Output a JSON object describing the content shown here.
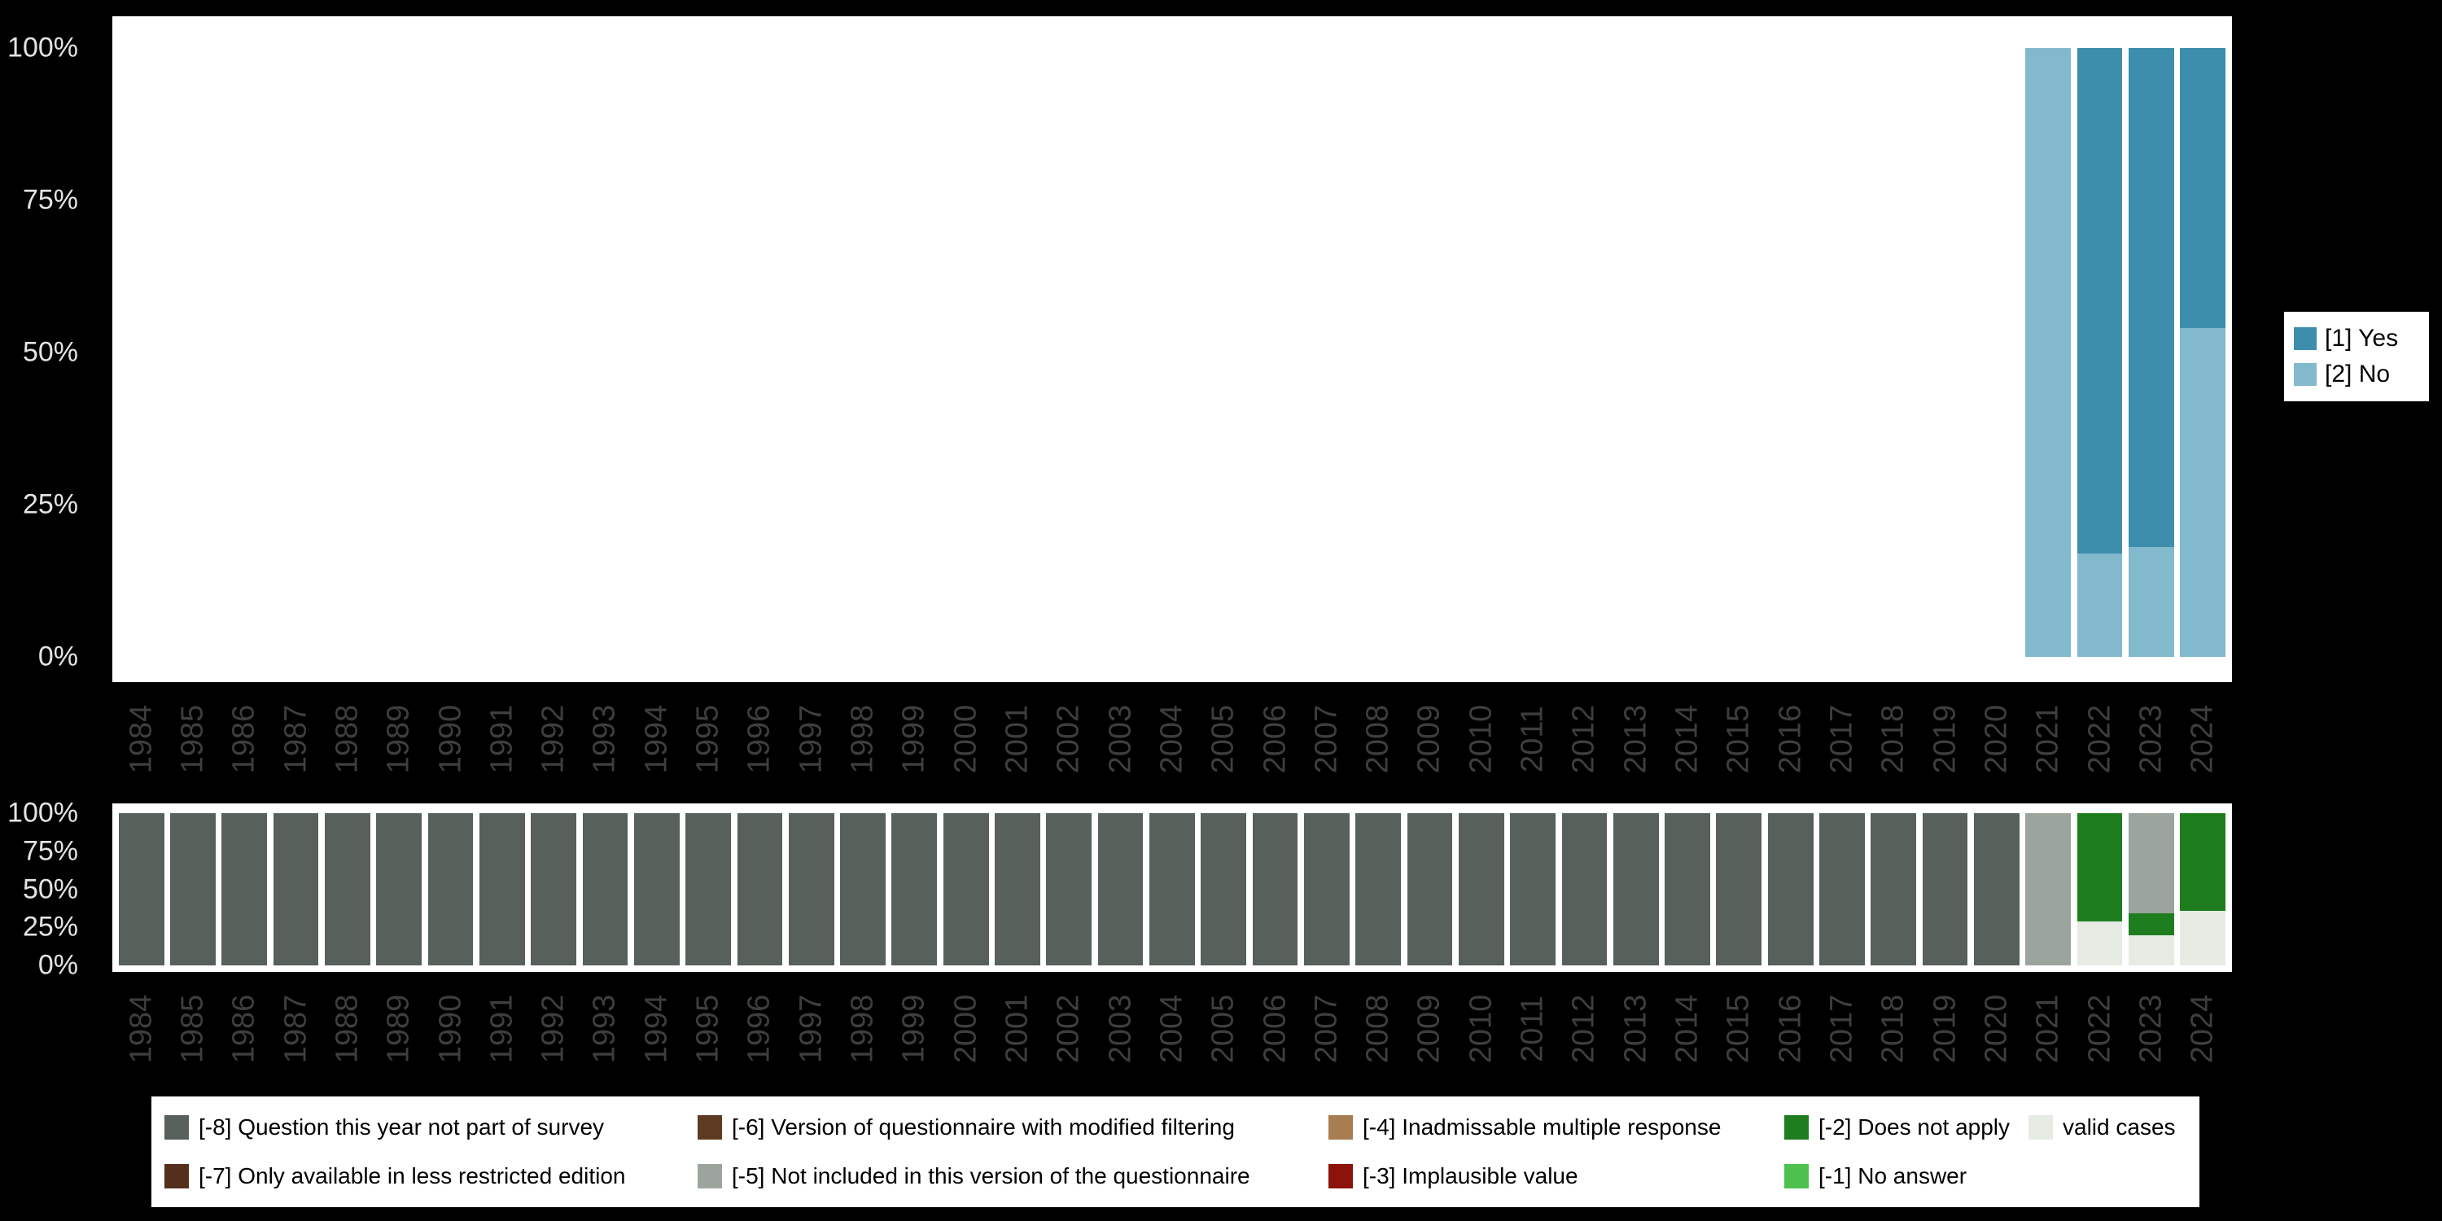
{
  "colors": {
    "yes": "#3C8EAC",
    "no": "#82B9CD",
    "m8": "#57605A",
    "m7": "#54301C",
    "m6": "#5D3A22",
    "m5": "#9CA49E",
    "m4": "#A87D52",
    "m3": "#8C130C",
    "m2": "#1E7D1E",
    "m1": "#4EC04E",
    "valid": "#E6EBE4",
    "background": "#000000",
    "panel": "#FFFFFF",
    "axis_y_text": "#E3E3E3",
    "axis_x_text": "#3E3E3E",
    "legend_text": "#000000"
  },
  "chart_data": [
    {
      "type": "bar",
      "stacked": true,
      "percent": true,
      "title": "",
      "xlabel": "",
      "ylabel": "",
      "legend_position": "right",
      "y_ticks": [
        "100%",
        "75%",
        "50%",
        "25%",
        "0%"
      ],
      "ylim": [
        0,
        100
      ],
      "categories": [
        "1984",
        "1985",
        "1986",
        "1987",
        "1988",
        "1989",
        "1990",
        "1991",
        "1992",
        "1993",
        "1994",
        "1995",
        "1996",
        "1997",
        "1998",
        "1999",
        "2000",
        "2001",
        "2002",
        "2003",
        "2004",
        "2005",
        "2006",
        "2007",
        "2008",
        "2009",
        "2010",
        "2011",
        "2012",
        "2013",
        "2014",
        "2015",
        "2016",
        "2017",
        "2018",
        "2019",
        "2020",
        "2021",
        "2022",
        "2023",
        "2024"
      ],
      "legend": [
        {
          "key": "yes",
          "label": "[1] Yes"
        },
        {
          "key": "no",
          "label": "[2] No"
        }
      ],
      "default_segments": [],
      "bars": {
        "2021": [
          {
            "key": "no",
            "pct": 100
          }
        ],
        "2022": [
          {
            "key": "no",
            "pct": 17
          },
          {
            "key": "yes",
            "pct": 83
          }
        ],
        "2023": [
          {
            "key": "no",
            "pct": 18
          },
          {
            "key": "yes",
            "pct": 82
          }
        ],
        "2024": [
          {
            "key": "no",
            "pct": 54
          },
          {
            "key": "yes",
            "pct": 46
          }
        ]
      }
    },
    {
      "type": "bar",
      "stacked": true,
      "percent": true,
      "title": "",
      "xlabel": "",
      "ylabel": "",
      "legend_position": "bottom",
      "y_ticks": [
        "100%",
        "75%",
        "50%",
        "25%",
        "0%"
      ],
      "ylim": [
        0,
        100
      ],
      "categories": [
        "1984",
        "1985",
        "1986",
        "1987",
        "1988",
        "1989",
        "1990",
        "1991",
        "1992",
        "1993",
        "1994",
        "1995",
        "1996",
        "1997",
        "1998",
        "1999",
        "2000",
        "2001",
        "2002",
        "2003",
        "2004",
        "2005",
        "2006",
        "2007",
        "2008",
        "2009",
        "2010",
        "2011",
        "2012",
        "2013",
        "2014",
        "2015",
        "2016",
        "2017",
        "2018",
        "2019",
        "2020",
        "2021",
        "2022",
        "2023",
        "2024"
      ],
      "default_segments": [
        {
          "key": "m8",
          "pct": 100
        }
      ],
      "bars": {
        "2021": [
          {
            "key": "m5",
            "pct": 100
          }
        ],
        "2022": [
          {
            "key": "valid",
            "pct": 29
          },
          {
            "key": "m2",
            "pct": 71
          }
        ],
        "2023": [
          {
            "key": "valid",
            "pct": 20
          },
          {
            "key": "m2",
            "pct": 14
          },
          {
            "key": "m5",
            "pct": 66
          }
        ],
        "2024": [
          {
            "key": "valid",
            "pct": 36
          },
          {
            "key": "m2",
            "pct": 64
          }
        ]
      }
    }
  ],
  "legend_bottom_columns": [
    [
      {
        "key": "m8",
        "label": "[-8] Question this year not part of survey"
      },
      {
        "key": "m7",
        "label": "[-7] Only available in less restricted edition"
      }
    ],
    [
      {
        "key": "m6",
        "label": "[-6] Version of questionnaire with modified filtering"
      },
      {
        "key": "m5",
        "label": "[-5] Not included in this version of the questionnaire"
      }
    ],
    [
      {
        "key": "m4",
        "label": "[-4] Inadmissable multiple response"
      },
      {
        "key": "m3",
        "label": "[-3] Implausible value"
      }
    ],
    [
      {
        "key": "m2",
        "label": "[-2] Does not apply"
      },
      {
        "key": "m1",
        "label": "[-1] No answer"
      }
    ],
    [
      {
        "key": "valid",
        "label": "valid cases"
      }
    ]
  ]
}
